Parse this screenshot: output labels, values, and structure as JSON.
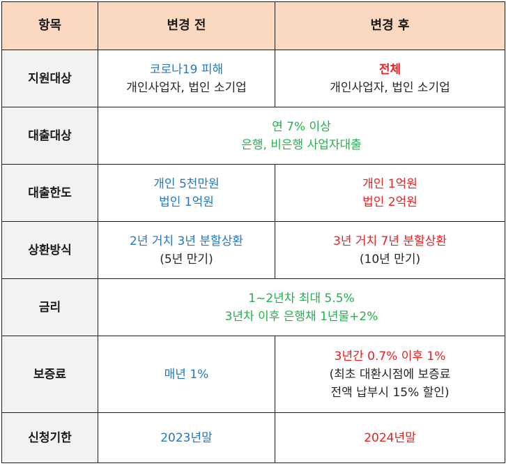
{
  "colors": {
    "header_bg": "#fbd9c0",
    "label_bg": "#f2f2f2",
    "before": "#1f78c8",
    "after": "#f21d1d",
    "common": "#22b14c",
    "text": "#262626"
  },
  "header": {
    "item": "항목",
    "before": "변경 전",
    "after": "변경 후"
  },
  "rows": {
    "support": {
      "label": "지원대상",
      "before_1": "코로나19 피해",
      "before_2": "개인사업자, 법인 소기업",
      "after_1": "전체",
      "after_2": "개인사업자, 법인 소기업"
    },
    "loan_target": {
      "label": "대출대상",
      "common_1": "연 7% 이상",
      "common_2": "은행, 비은행 사업자대출"
    },
    "loan_limit": {
      "label": "대출한도",
      "before_1": "개인 5천만원",
      "before_2": "법인 1억원",
      "after_1": "개인 1억원",
      "after_2": "법인 2억원"
    },
    "repayment": {
      "label": "상환방식",
      "before_1": "2년 거치 3년 분할상환",
      "before_2": "(5년 만기)",
      "after_1": "3년 거치 7년 분할상환",
      "after_2": "(10년 만기)"
    },
    "interest": {
      "label": "금리",
      "common_1": "1~2년차 최대 5.5%",
      "common_2": "3년차 이후 은행채 1년물+2%"
    },
    "guarantee_fee": {
      "label": "보증료",
      "before_1": "매년 1%",
      "after_1": "3년간 0.7% 이후 1%",
      "after_2": "(최초 대환시점에 보증료",
      "after_3": "전액 납부시 15% 할인)"
    },
    "deadline": {
      "label": "신청기한",
      "before_1": "2023년말",
      "after_1": "2024년말"
    }
  }
}
